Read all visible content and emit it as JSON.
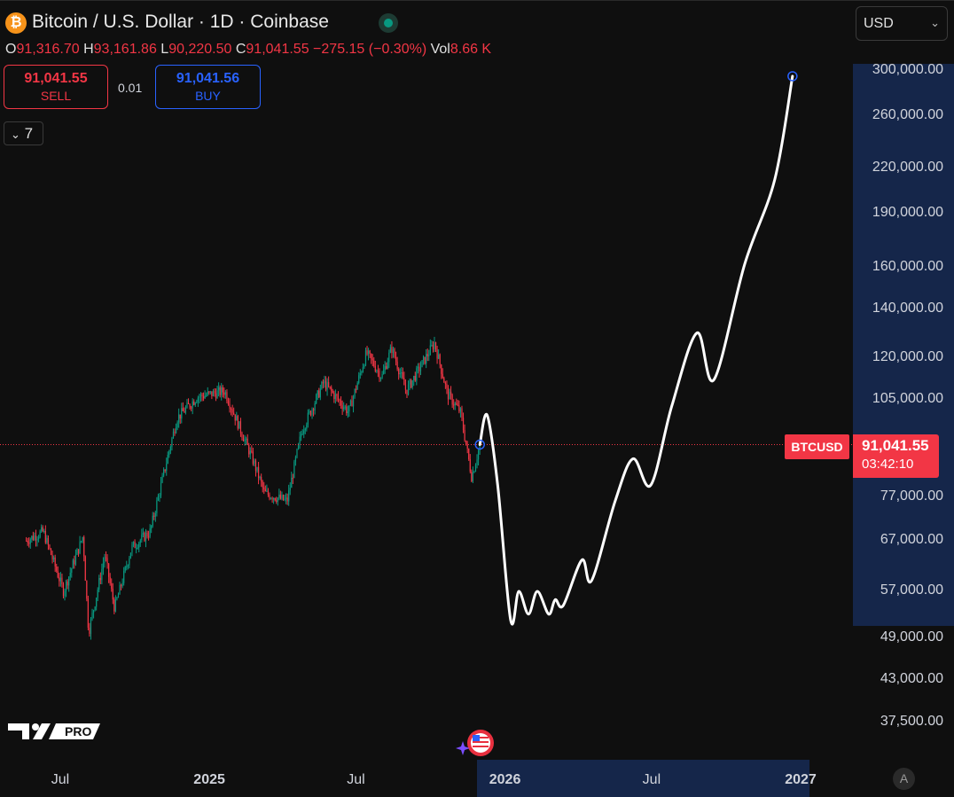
{
  "header": {
    "symbol_icon": "bitcoin-icon",
    "title": "Bitcoin / U.S. Dollar · 1D · Coinbase",
    "ohlc": {
      "o_label": "O",
      "o_value": "91,316.70",
      "h_label": "H",
      "h_value": "93,161.86",
      "l_label": "L",
      "l_value": "90,220.50",
      "c_label": "C",
      "c_value": "91,041.55",
      "change": "−275.15 (−0.30%)",
      "vol_label": "Vol",
      "vol_value": "8.66 K"
    },
    "currency": "USD"
  },
  "trade": {
    "sell_price": "91,041.55",
    "sell_label": "SELL",
    "spread": "0.01",
    "buy_price": "91,041.56",
    "buy_label": "BUY"
  },
  "indicators_collapse": {
    "count": "7"
  },
  "price_axis": {
    "ticks": [
      "300,000.00",
      "260,000.00",
      "220,000.00",
      "190,000.00",
      "160,000.00",
      "140,000.00",
      "120,000.00",
      "105,000.00",
      "77,000.00",
      "67,000.00",
      "57,000.00",
      "49,000.00",
      "43,000.00",
      "37,500.00"
    ]
  },
  "last_price": {
    "symbol": "BTCUSD",
    "price": "91,041.55",
    "countdown": "03:42:10"
  },
  "time_axis": {
    "ticks": [
      "Jul",
      "2025",
      "Jul",
      "2026",
      "Jul",
      "2027"
    ]
  },
  "logo": {
    "badge": "PRO"
  },
  "auto_scale": "A",
  "colors": {
    "up": "#089981",
    "down": "#f23645",
    "accent": "#2962ff",
    "drawing": "#ffffff"
  },
  "chart_data": {
    "type": "candlestick",
    "scale": "log",
    "symbol": "BTCUSD",
    "ylim": [
      34000,
      330000
    ],
    "price_samples": [
      {
        "date": "2024-05-20",
        "value": 67000
      },
      {
        "date": "2024-06-10",
        "value": 69000
      },
      {
        "date": "2024-07-05",
        "value": 57000
      },
      {
        "date": "2024-07-29",
        "value": 68000
      },
      {
        "date": "2024-08-05",
        "value": 50000
      },
      {
        "date": "2024-08-25",
        "value": 64000
      },
      {
        "date": "2024-09-06",
        "value": 54000
      },
      {
        "date": "2024-09-27",
        "value": 65500
      },
      {
        "date": "2024-10-20",
        "value": 69000
      },
      {
        "date": "2024-11-11",
        "value": 88000
      },
      {
        "date": "2024-11-22",
        "value": 99000
      },
      {
        "date": "2024-12-17",
        "value": 106000
      },
      {
        "date": "2025-01-20",
        "value": 108000
      },
      {
        "date": "2025-02-25",
        "value": 86000
      },
      {
        "date": "2025-03-10",
        "value": 78000
      },
      {
        "date": "2025-04-07",
        "value": 76000
      },
      {
        "date": "2025-04-25",
        "value": 95000
      },
      {
        "date": "2025-05-22",
        "value": 111000
      },
      {
        "date": "2025-06-22",
        "value": 101000
      },
      {
        "date": "2025-07-14",
        "value": 122000
      },
      {
        "date": "2025-08-02",
        "value": 113000
      },
      {
        "date": "2025-08-14",
        "value": 124000
      },
      {
        "date": "2025-09-01",
        "value": 108000
      },
      {
        "date": "2025-10-06",
        "value": 126000
      },
      {
        "date": "2025-10-22",
        "value": 107000
      },
      {
        "date": "2025-11-07",
        "value": 101000
      },
      {
        "date": "2025-11-21",
        "value": 82000
      },
      {
        "date": "2025-12-01",
        "value": 91041.55
      }
    ],
    "projection": [
      {
        "date": "2025-12-01",
        "value": 91041.55
      },
      {
        "date": "2025-12-10",
        "value": 100000
      },
      {
        "date": "2025-12-23",
        "value": 80000
      },
      {
        "date": "2026-01-08",
        "value": 52000
      },
      {
        "date": "2026-01-18",
        "value": 57000
      },
      {
        "date": "2026-01-30",
        "value": 53000
      },
      {
        "date": "2026-02-10",
        "value": 57000
      },
      {
        "date": "2026-02-24",
        "value": 53000
      },
      {
        "date": "2026-03-04",
        "value": 55500
      },
      {
        "date": "2026-03-14",
        "value": 54500
      },
      {
        "date": "2026-04-06",
        "value": 63000
      },
      {
        "date": "2026-04-18",
        "value": 59000
      },
      {
        "date": "2026-05-17",
        "value": 76000
      },
      {
        "date": "2026-06-08",
        "value": 87000
      },
      {
        "date": "2026-06-30",
        "value": 80000
      },
      {
        "date": "2026-07-26",
        "value": 103000
      },
      {
        "date": "2026-08-26",
        "value": 130000
      },
      {
        "date": "2026-09-16",
        "value": 112000
      },
      {
        "date": "2026-10-24",
        "value": 162000
      },
      {
        "date": "2026-11-30",
        "value": 212000
      },
      {
        "date": "2026-12-22",
        "value": 295000
      }
    ]
  }
}
